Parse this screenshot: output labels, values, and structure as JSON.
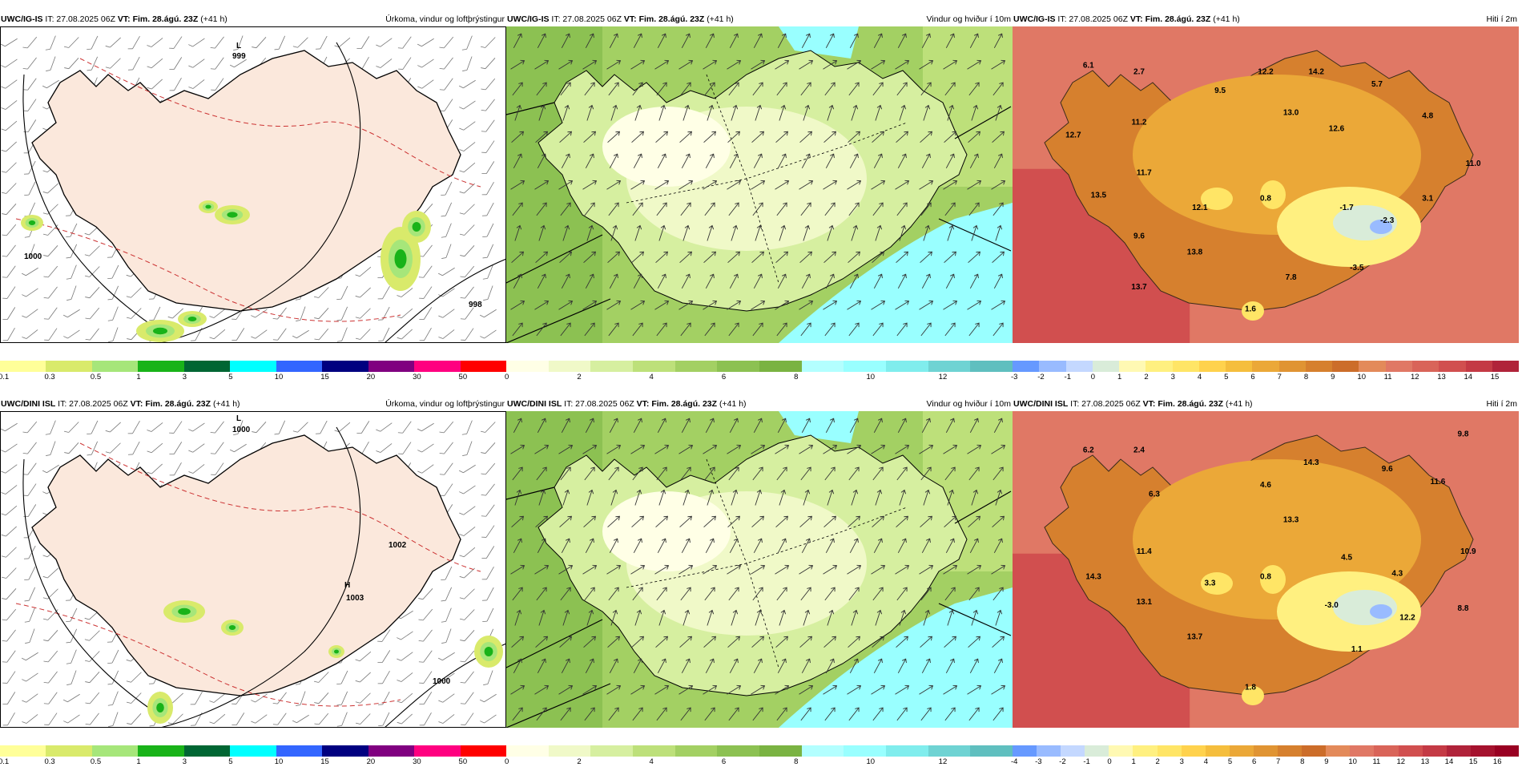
{
  "rows": [
    {
      "precip": {
        "model_label": "UWC/IG-IS",
        "it_text": "IT: 27.08.2025 06Z",
        "vt_label": "VT:",
        "vt_value": "Fim. 28.ágú. 23Z",
        "lead": "(+41 h)",
        "title": "Úrkoma, vindur og loftþrýstingur",
        "pressure_labels": [
          "L",
          "999",
          "1000",
          "998"
        ],
        "ticks": [
          "0.1",
          "0.3",
          "0.5",
          "1",
          "3",
          "5",
          "10",
          "15",
          "20",
          "30",
          "50"
        ]
      },
      "wind": {
        "model_label": "UWC/IG-IS",
        "it_text": "IT: 27.08.2025 06Z",
        "vt_label": "VT:",
        "vt_value": "Fim. 28.ágú. 23Z",
        "lead": "(+41 h)",
        "title": "Vindur og hviður í 10m",
        "ticks": [
          "0",
          "2",
          "4",
          "6",
          "8",
          "10",
          "12"
        ]
      },
      "temp": {
        "model_label": "UWC/IG-IS",
        "it_text": "IT: 27.08.2025 06Z",
        "vt_label": "VT:",
        "vt_value": "Fim. 28.ágú. 23Z",
        "lead": "(+41 h)",
        "title": "Hiti í 2m",
        "ticks": [
          "-3",
          "-2",
          "-1",
          "0",
          "1",
          "2",
          "3",
          "4",
          "5",
          "6",
          "7",
          "8",
          "9",
          "10",
          "11",
          "12",
          "13",
          "14",
          "15"
        ],
        "values": [
          {
            "t": "6.1",
            "x": 0.15,
            "y": 0.13
          },
          {
            "t": "2.7",
            "x": 0.25,
            "y": 0.15
          },
          {
            "t": "12.2",
            "x": 0.5,
            "y": 0.15
          },
          {
            "t": "14.2",
            "x": 0.6,
            "y": 0.15
          },
          {
            "t": "9.5",
            "x": 0.41,
            "y": 0.21
          },
          {
            "t": "5.7",
            "x": 0.72,
            "y": 0.19
          },
          {
            "t": "13.0",
            "x": 0.55,
            "y": 0.28
          },
          {
            "t": "4.8",
            "x": 0.82,
            "y": 0.29
          },
          {
            "t": "11.2",
            "x": 0.25,
            "y": 0.31
          },
          {
            "t": "12.6",
            "x": 0.64,
            "y": 0.33
          },
          {
            "t": "12.7",
            "x": 0.12,
            "y": 0.35
          },
          {
            "t": "11.0",
            "x": 0.91,
            "y": 0.44
          },
          {
            "t": "11.7",
            "x": 0.26,
            "y": 0.47
          },
          {
            "t": "13.5",
            "x": 0.17,
            "y": 0.54
          },
          {
            "t": "0.8",
            "x": 0.5,
            "y": 0.55
          },
          {
            "t": "3.1",
            "x": 0.82,
            "y": 0.55
          },
          {
            "t": "12.1",
            "x": 0.37,
            "y": 0.58
          },
          {
            "t": "-1.7",
            "x": 0.66,
            "y": 0.58
          },
          {
            "t": "-2.3",
            "x": 0.74,
            "y": 0.62
          },
          {
            "t": "9.6",
            "x": 0.25,
            "y": 0.67
          },
          {
            "t": "13.8",
            "x": 0.36,
            "y": 0.72
          },
          {
            "t": "-3.5",
            "x": 0.68,
            "y": 0.77
          },
          {
            "t": "7.8",
            "x": 0.55,
            "y": 0.8
          },
          {
            "t": "13.7",
            "x": 0.25,
            "y": 0.83
          },
          {
            "t": "1.6",
            "x": 0.47,
            "y": 0.9
          }
        ]
      }
    },
    {
      "precip": {
        "model_label": "UWC/DINI ISL",
        "it_text": "IT: 27.08.2025 06Z",
        "vt_label": "VT:",
        "vt_value": "Fim. 28.ágú. 23Z",
        "lead": "(+41 h)",
        "title": "Úrkoma, vindur og loftþrýstingur",
        "pressure_labels": [
          "L",
          "1000",
          "H",
          "1003",
          "1002",
          "1000"
        ],
        "ticks": [
          "0.1",
          "0.3",
          "0.5",
          "1",
          "3",
          "5",
          "10",
          "15",
          "20",
          "30",
          "50"
        ]
      },
      "wind": {
        "model_label": "UWC/DINI ISL",
        "it_text": "IT: 27.08.2025 06Z",
        "vt_label": "VT:",
        "vt_value": "Fim. 28.ágú. 23Z",
        "lead": "(+41 h)",
        "title": "Vindur og hviður í 10m",
        "ticks": [
          "0",
          "2",
          "4",
          "6",
          "8",
          "10",
          "12"
        ]
      },
      "temp": {
        "model_label": "UWC/DINI ISL",
        "it_text": "IT: 27.08.2025 06Z",
        "vt_label": "VT:",
        "vt_value": "Fim. 28.ágú. 23Z",
        "lead": "(+41 h)",
        "title": "Hiti í 2m",
        "ticks": [
          "-4",
          "-3",
          "-2",
          "-1",
          "0",
          "1",
          "2",
          "3",
          "4",
          "5",
          "6",
          "7",
          "8",
          "9",
          "10",
          "11",
          "12",
          "13",
          "14",
          "15",
          "16"
        ],
        "values": [
          {
            "t": "6.2",
            "x": 0.15,
            "y": 0.13
          },
          {
            "t": "2.4",
            "x": 0.25,
            "y": 0.13
          },
          {
            "t": "9.8",
            "x": 0.89,
            "y": 0.08
          },
          {
            "t": "14.3",
            "x": 0.59,
            "y": 0.17
          },
          {
            "t": "9.6",
            "x": 0.74,
            "y": 0.19
          },
          {
            "t": "11.6",
            "x": 0.84,
            "y": 0.23
          },
          {
            "t": "4.6",
            "x": 0.5,
            "y": 0.24
          },
          {
            "t": "6.3",
            "x": 0.28,
            "y": 0.27
          },
          {
            "t": "13.3",
            "x": 0.55,
            "y": 0.35
          },
          {
            "t": "11.4",
            "x": 0.26,
            "y": 0.45
          },
          {
            "t": "4.5",
            "x": 0.66,
            "y": 0.47
          },
          {
            "t": "10.9",
            "x": 0.9,
            "y": 0.45
          },
          {
            "t": "14.3",
            "x": 0.16,
            "y": 0.53
          },
          {
            "t": "4.3",
            "x": 0.76,
            "y": 0.52
          },
          {
            "t": "3.3",
            "x": 0.39,
            "y": 0.55
          },
          {
            "t": "0.8",
            "x": 0.5,
            "y": 0.53
          },
          {
            "t": "13.1",
            "x": 0.26,
            "y": 0.61
          },
          {
            "t": "-3.0",
            "x": 0.63,
            "y": 0.62
          },
          {
            "t": "8.8",
            "x": 0.89,
            "y": 0.63
          },
          {
            "t": "12.2",
            "x": 0.78,
            "y": 0.66
          },
          {
            "t": "13.7",
            "x": 0.36,
            "y": 0.72
          },
          {
            "t": "1.1",
            "x": 0.68,
            "y": 0.76
          },
          {
            "t": "1.8",
            "x": 0.47,
            "y": 0.88
          }
        ]
      }
    }
  ],
  "colors": {
    "precip": [
      "#ffff99",
      "#d9ea6b",
      "#a6e67a",
      "#19b319",
      "#006633",
      "#00ffff",
      "#3366ff",
      "#000080",
      "#800080",
      "#ff0080",
      "#ff0000"
    ],
    "wind": [
      "#ffffe6",
      "#f0f9c8",
      "#d6efa0",
      "#bde07a",
      "#a3d063",
      "#8cc152",
      "#7ab342",
      "#b3ffff",
      "#99ffff",
      "#80eded",
      "#6fd3d3",
      "#5fbfbf"
    ],
    "temp": [
      "#6699ff",
      "#99bbff",
      "#c4d8ff",
      "#d9ecd9",
      "#fff9b3",
      "#fff080",
      "#ffe566",
      "#ffd24d",
      "#f5be3d",
      "#eba838",
      "#e09433",
      "#d6802e",
      "#cc6d2a",
      "#e38a5a",
      "#e07865",
      "#d96459",
      "#d14f4f",
      "#c43a45",
      "#b0233a",
      "#a5122e",
      "#990022"
    ]
  }
}
